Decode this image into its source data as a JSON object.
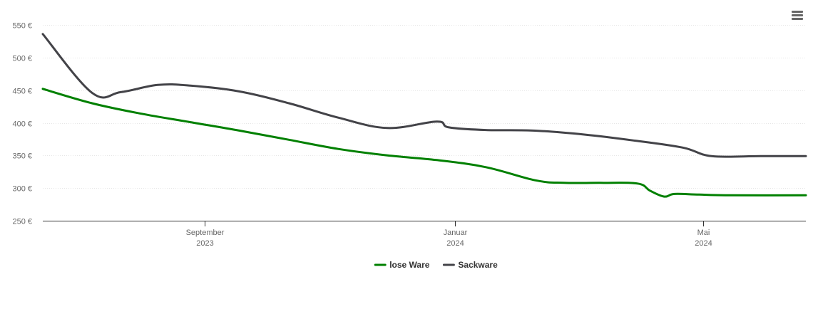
{
  "menu": {
    "icon": "hamburger-menu-icon"
  },
  "chart_data": {
    "type": "line",
    "title": "",
    "xlabel": "",
    "ylabel": "",
    "x_range": [
      "2023-06-14",
      "2024-06-20"
    ],
    "ylim": [
      250,
      550
    ],
    "y_ticks": [
      {
        "value": 250,
        "label": "250 €"
      },
      {
        "value": 300,
        "label": "300 €"
      },
      {
        "value": 350,
        "label": "350 €"
      },
      {
        "value": 400,
        "label": "400 €"
      },
      {
        "value": 450,
        "label": "450 €"
      },
      {
        "value": 500,
        "label": "500 €"
      },
      {
        "value": 550,
        "label": "550 €"
      }
    ],
    "x_ticks": [
      {
        "date": "2023-09-01",
        "month": "September",
        "year": "2023"
      },
      {
        "date": "2024-01-01",
        "month": "Januar",
        "year": "2024"
      },
      {
        "date": "2024-05-01",
        "month": "Mai",
        "year": "2024"
      }
    ],
    "grid": true,
    "legend_position": "bottom-center",
    "series": [
      {
        "name": "lose Ware",
        "color": "#008000",
        "points": [
          [
            "2023-06-14",
            452
          ],
          [
            "2023-07-08",
            430
          ],
          [
            "2023-08-01",
            414
          ],
          [
            "2023-08-25",
            401
          ],
          [
            "2023-09-18",
            388
          ],
          [
            "2023-10-12",
            374
          ],
          [
            "2023-11-05",
            360
          ],
          [
            "2023-11-29",
            350
          ],
          [
            "2023-12-23",
            343
          ],
          [
            "2024-01-16",
            332
          ],
          [
            "2024-02-09",
            312
          ],
          [
            "2024-02-23",
            308
          ],
          [
            "2024-03-12",
            308
          ],
          [
            "2024-03-30",
            307
          ],
          [
            "2024-04-05",
            296
          ],
          [
            "2024-04-12",
            287
          ],
          [
            "2024-04-17",
            291
          ],
          [
            "2024-04-29",
            290
          ],
          [
            "2024-05-15",
            289
          ],
          [
            "2024-06-20",
            289
          ]
        ]
      },
      {
        "name": "Sackware",
        "color": "#434348",
        "points": [
          [
            "2023-06-14",
            536
          ],
          [
            "2023-07-08",
            446
          ],
          [
            "2023-07-22",
            447
          ],
          [
            "2023-08-09",
            458
          ],
          [
            "2023-08-25",
            457
          ],
          [
            "2023-09-18",
            448
          ],
          [
            "2023-10-12",
            430
          ],
          [
            "2023-11-05",
            408
          ],
          [
            "2023-11-29",
            392
          ],
          [
            "2023-12-23",
            402
          ],
          [
            "2023-12-29",
            393
          ],
          [
            "2024-01-16",
            389
          ],
          [
            "2024-02-09",
            388
          ],
          [
            "2024-03-04",
            382
          ],
          [
            "2024-03-28",
            373
          ],
          [
            "2024-04-21",
            362
          ],
          [
            "2024-05-05",
            349
          ],
          [
            "2024-05-29",
            349
          ],
          [
            "2024-06-20",
            349
          ]
        ]
      }
    ]
  }
}
